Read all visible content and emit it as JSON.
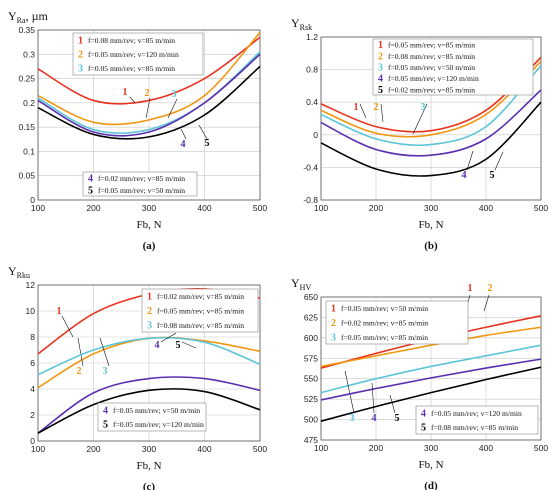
{
  "chart_data": [
    {
      "type": "line",
      "panel": "(a)",
      "ylabel_main": "Y",
      "ylabel_sub": "Ra",
      "ylabel_unit": ", µm",
      "xlabel": "Fb, N",
      "xlim": [
        100,
        500
      ],
      "ylim": [
        0,
        0.35
      ],
      "xticks": [
        "100",
        "200",
        "300",
        "400",
        "500"
      ],
      "yticks": [
        "0",
        "0.05",
        "0.1",
        "0.15",
        "0.2",
        "0.25",
        "0.3",
        "0.35"
      ],
      "grid": true,
      "series": [
        {
          "id": "1",
          "name": "f=0.08 mm/rev; v=85 m/min",
          "color": "#e8321e",
          "x": [
            100,
            200,
            300,
            400,
            500
          ],
          "y": [
            0.27,
            0.205,
            0.205,
            0.25,
            0.335
          ]
        },
        {
          "id": "2",
          "name": "f=0.05 mm/rev; v=120 m/min",
          "color": "#f0960f",
          "x": [
            100,
            200,
            300,
            400,
            500
          ],
          "y": [
            0.215,
            0.16,
            0.165,
            0.215,
            0.345
          ]
        },
        {
          "id": "3",
          "name": "f=0.05 mm/rev; v=85 m/min",
          "color": "#5bc5d8",
          "x": [
            100,
            200,
            300,
            400,
            500
          ],
          "y": [
            0.21,
            0.145,
            0.145,
            0.2,
            0.305
          ]
        },
        {
          "id": "4",
          "name": "f=0.02 mm/rev; v=85 m/min",
          "color": "#5b2fb0",
          "x": [
            100,
            200,
            300,
            400,
            500
          ],
          "y": [
            0.205,
            0.14,
            0.14,
            0.2,
            0.3
          ]
        },
        {
          "id": "5",
          "name": "f=0.05 mm/rev; v=50 m/min",
          "color": "#000000",
          "x": [
            100,
            200,
            300,
            400,
            500
          ],
          "y": [
            0.19,
            0.135,
            0.13,
            0.175,
            0.275
          ]
        }
      ],
      "legends": [
        [
          "1",
          "2",
          "3"
        ],
        [
          "4",
          "5"
        ]
      ]
    },
    {
      "type": "line",
      "panel": "(b)",
      "ylabel_main": "Y",
      "ylabel_sub": "Rsk",
      "ylabel_unit": "",
      "xlabel": "Fb, N",
      "xlim": [
        100,
        500
      ],
      "ylim": [
        -0.8,
        1.2
      ],
      "xticks": [
        "100",
        "200",
        "300",
        "400",
        "500"
      ],
      "yticks": [
        "-0.8",
        "-0.4",
        "0",
        "0.4",
        "0.8",
        "1.2"
      ],
      "grid": true,
      "series": [
        {
          "id": "1",
          "name": "f=0.05 mm/rev; v=85 m/min",
          "color": "#e8321e",
          "x": [
            100,
            200,
            300,
            400,
            500
          ],
          "y": [
            0.38,
            0.1,
            0.05,
            0.3,
            0.95
          ]
        },
        {
          "id": "2",
          "name": "f=0.08 mm/rev; v=85 m/min",
          "color": "#f0960f",
          "x": [
            100,
            200,
            300,
            400,
            500
          ],
          "y": [
            0.3,
            0.02,
            0.0,
            0.25,
            0.9
          ]
        },
        {
          "id": "3",
          "name": "f=0.05 mm/rev; v=50 m/min",
          "color": "#5bc5d8",
          "x": [
            100,
            200,
            300,
            400,
            500
          ],
          "y": [
            0.25,
            -0.05,
            -0.12,
            0.1,
            0.85
          ]
        },
        {
          "id": "4",
          "name": "f=0.05 mm/rev; v=120 m/min",
          "color": "#5b2fb0",
          "x": [
            100,
            200,
            300,
            400,
            500
          ],
          "y": [
            0.15,
            -0.18,
            -0.25,
            -0.05,
            0.55
          ]
        },
        {
          "id": "5",
          "name": "f=0.02 mm/rev; v=85 m/min",
          "color": "#000000",
          "x": [
            100,
            200,
            300,
            400,
            500
          ],
          "y": [
            -0.1,
            -0.42,
            -0.5,
            -0.3,
            0.4
          ]
        }
      ],
      "legends": [
        [
          "1",
          "2",
          "3",
          "4",
          "5"
        ]
      ]
    },
    {
      "type": "line",
      "panel": "(c)",
      "ylabel_main": "Y",
      "ylabel_sub": "Rku",
      "ylabel_unit": "",
      "xlabel": "Fb, N",
      "xlim": [
        100,
        500
      ],
      "ylim": [
        0,
        12
      ],
      "xticks": [
        "100",
        "200",
        "300",
        "400",
        "500"
      ],
      "yticks": [
        "0",
        "2",
        "4",
        "6",
        "8",
        "10",
        "12"
      ],
      "grid": true,
      "series": [
        {
          "id": "1",
          "name": "f=0.02 mm/rev; v=85 m/min",
          "color": "#e8321e",
          "x": [
            100,
            200,
            300,
            400,
            500
          ],
          "y": [
            6.7,
            9.8,
            11.3,
            11.7,
            11.0
          ]
        },
        {
          "id": "2",
          "name": "f=0.05 mm/rev; v=85 m/min",
          "color": "#f0960f",
          "x": [
            100,
            200,
            300,
            400,
            500
          ],
          "y": [
            4.1,
            6.7,
            7.9,
            7.7,
            6.9
          ]
        },
        {
          "id": "3",
          "name": "f=0.08 mm/rev; v=85 m/min",
          "color": "#5bc5d8",
          "x": [
            100,
            200,
            300,
            400,
            500
          ],
          "y": [
            5.1,
            7.0,
            7.9,
            7.6,
            5.9
          ]
        },
        {
          "id": "4",
          "name": "f=0.05 mm/rev; v=50 m/min",
          "color": "#5b2fb0",
          "x": [
            100,
            200,
            300,
            400,
            500
          ],
          "y": [
            0.6,
            3.7,
            4.8,
            4.8,
            3.9
          ]
        },
        {
          "id": "5",
          "name": "f=0.05 mm/rev; v=120 m/min",
          "color": "#000000",
          "x": [
            100,
            200,
            300,
            400,
            500
          ],
          "y": [
            0.6,
            2.8,
            3.9,
            3.8,
            2.4
          ]
        }
      ],
      "legends": [
        [
          "1",
          "2",
          "3"
        ],
        [
          "4",
          "5"
        ]
      ]
    },
    {
      "type": "line",
      "panel": "(d)",
      "ylabel_main": "Y",
      "ylabel_sub": "HV",
      "ylabel_unit": "",
      "xlabel": "Fb, N",
      "xlim": [
        100,
        500
      ],
      "ylim": [
        475,
        650
      ],
      "xticks": [
        "100",
        "200",
        "300",
        "400",
        "500"
      ],
      "yticks": [
        "475",
        "500",
        "525",
        "550",
        "575",
        "600",
        "625",
        "650"
      ],
      "grid": true,
      "series": [
        {
          "id": "1",
          "name": "f=0.05 mm/rev; v=50 m/min",
          "color": "#e8321e",
          "x": [
            100,
            200,
            300,
            400,
            500
          ],
          "y": [
            563,
            581,
            598,
            613,
            627
          ]
        },
        {
          "id": "2",
          "name": "f=0.02 mm/rev; v=85 m/min",
          "color": "#f0960f",
          "x": [
            100,
            200,
            300,
            400,
            500
          ],
          "y": [
            565,
            578,
            591,
            603,
            613
          ]
        },
        {
          "id": "3",
          "name": "f=0.05 mm/rev; v=85 m/min",
          "color": "#5bc5d8",
          "x": [
            100,
            200,
            300,
            400,
            500
          ],
          "y": [
            533,
            550,
            565,
            578,
            591
          ]
        },
        {
          "id": "4",
          "name": "f=0.05 mm/rev; v=120 m/min",
          "color": "#5b2fb0",
          "x": [
            100,
            200,
            300,
            400,
            500
          ],
          "y": [
            524,
            538,
            551,
            563,
            574
          ]
        },
        {
          "id": "5",
          "name": "f=0.08 mm/rev; v=85 m/min",
          "color": "#000000",
          "x": [
            100,
            200,
            300,
            400,
            500
          ],
          "y": [
            498,
            516,
            533,
            549,
            564
          ]
        }
      ],
      "legends": [
        [
          "1",
          "2",
          "3"
        ],
        [
          "4",
          "5"
        ]
      ]
    }
  ]
}
